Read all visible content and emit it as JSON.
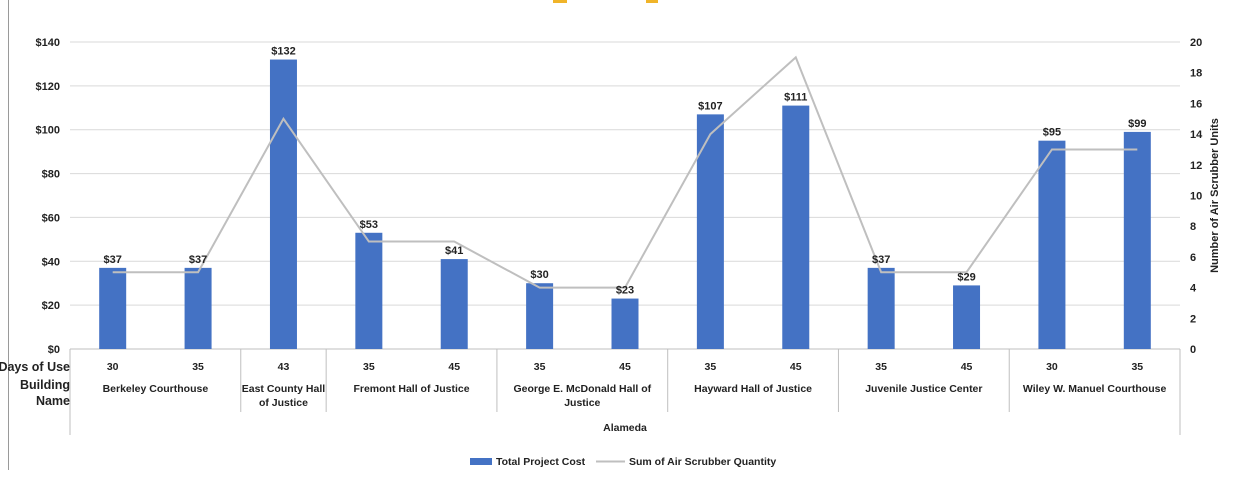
{
  "chart_data": {
    "type": "bar",
    "y_left": {
      "ticks": [
        "$0",
        "$20",
        "$40",
        "$60",
        "$80",
        "$100",
        "$120",
        "$140"
      ],
      "ylim": [
        0,
        140
      ]
    },
    "y_right": {
      "label": "Number of Air Scrubber Units",
      "ticks": [
        "0",
        "2",
        "4",
        "6",
        "8",
        "10",
        "12",
        "14",
        "16",
        "18",
        "20"
      ],
      "ylim": [
        0,
        20
      ]
    },
    "row_headers": {
      "days": "Days of Use",
      "building_1": "Building",
      "building_2": "Name"
    },
    "days_of_use": [
      "30",
      "35",
      "43",
      "35",
      "45",
      "35",
      "45",
      "35",
      "45",
      "35",
      "45",
      "30",
      "35"
    ],
    "buildings": [
      {
        "lines": [
          "Berkeley Courthouse"
        ],
        "span": 2
      },
      {
        "lines": [
          "East County Hall",
          "of Justice"
        ],
        "span": 1
      },
      {
        "lines": [
          "Fremont Hall of Justice"
        ],
        "span": 2
      },
      {
        "lines": [
          "George E. McDonald Hall of",
          "Justice"
        ],
        "span": 2
      },
      {
        "lines": [
          "Hayward Hall of Justice"
        ],
        "span": 2
      },
      {
        "lines": [
          "Juvenile Justice Center"
        ],
        "span": 2
      },
      {
        "lines": [
          "Wiley W. Manuel Courthouse"
        ],
        "span": 2
      }
    ],
    "group_label": "Alameda",
    "series": [
      {
        "name": "Total Project Cost",
        "type": "bar",
        "axis": "left",
        "color": "#4472c4",
        "values": [
          37,
          37,
          132,
          53,
          41,
          30,
          23,
          107,
          111,
          37,
          29,
          95,
          99
        ],
        "data_labels": [
          "$37",
          "$37",
          "$132",
          "$53",
          "$41",
          "$30",
          "$23",
          "$107",
          "$111",
          "$37",
          "$29",
          "$95",
          "$99"
        ]
      },
      {
        "name": "Sum of Air Scrubber Quantity",
        "type": "line",
        "axis": "right",
        "color": "#bfbfbf",
        "values": [
          5,
          5,
          15,
          7,
          7,
          4,
          4,
          14,
          19,
          5,
          5,
          13,
          13
        ]
      }
    ],
    "grid": true,
    "legend": "bottom"
  }
}
